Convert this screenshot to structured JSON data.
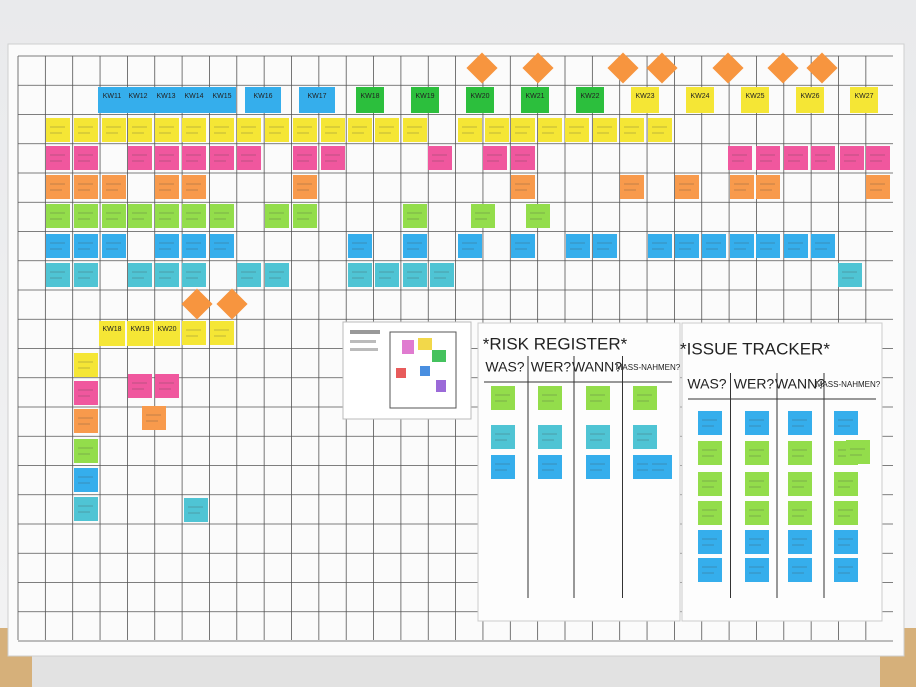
{
  "board": {
    "kw_headers": [
      "KW11",
      "KW12",
      "KW13",
      "KW14",
      "KW15",
      "KW16",
      "KW17",
      "KW18",
      "KW19",
      "KW20",
      "KW21",
      "KW22",
      "KW23",
      "KW24",
      "KW25",
      "KW26",
      "KW27"
    ],
    "lower_kw_headers": [
      "KW18",
      "KW19",
      "KW20"
    ],
    "risk_register": {
      "title": "*RISK REGISTER*",
      "columns": [
        "WAS?",
        "WER?",
        "WANN?",
        "MASS-NAHMEN?"
      ]
    },
    "issue_tracker": {
      "title": "*ISSUE TRACKER*",
      "columns": [
        "WAS?",
        "WER?",
        "WANN?",
        "MASS-NAHMEN?"
      ]
    }
  }
}
